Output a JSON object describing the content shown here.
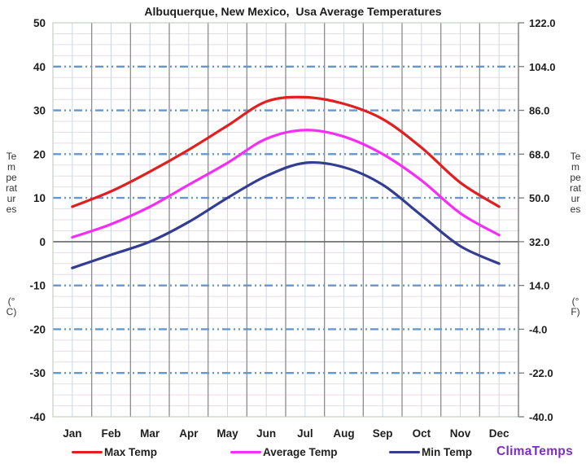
{
  "title": "Albuquerque, New Mexico,  Usa Average Temperatures",
  "watermark": "ClimaTemps",
  "axis_left": {
    "word": "Temperatures",
    "unit": "(°C)"
  },
  "axis_right": {
    "word": "Temperatures",
    "unit": "(°F)"
  },
  "colors": {
    "max_temp": "#e02020",
    "average_temp": "#f62df6",
    "min_temp": "#333d92",
    "dashed_grid": "#6596d2",
    "zero_line": "#666666",
    "minor_grid_h": "#e6dde6",
    "minor_grid_v": "#ccd6e6",
    "month_grid": "#8c8c8c",
    "frame": "#b7cab7",
    "right_axis": "#7a7a7a",
    "watermark": "#7d2ec2"
  },
  "chart_data": {
    "type": "line",
    "title": "Albuquerque, New Mexico, Usa Average Temperatures",
    "xlabel": "",
    "ylabel_left": "Temperatures (°C)",
    "ylabel_right": "Temperatures (°F)",
    "categories": [
      "Jan",
      "Feb",
      "Mar",
      "Apr",
      "May",
      "Jun",
      "Jul",
      "Aug",
      "Sep",
      "Oct",
      "Nov",
      "Dec"
    ],
    "series": [
      {
        "name": "Max Temp",
        "color": "#e02020",
        "values": [
          8,
          11.5,
          16,
          21,
          26.5,
          32,
          33,
          31.5,
          28,
          21.5,
          13.5,
          8
        ]
      },
      {
        "name": "Average Temp",
        "color": "#f62df6",
        "values": [
          1,
          4,
          8,
          13,
          18,
          23.5,
          25.5,
          24,
          20,
          14,
          6.5,
          1.5
        ]
      },
      {
        "name": "Min Temp",
        "color": "#333d92",
        "values": [
          -6,
          -3,
          0,
          4.5,
          10,
          15,
          18,
          17,
          13,
          6,
          -1,
          -5
        ]
      }
    ],
    "ylim": [
      -40,
      50
    ],
    "y_ticks_c": [
      50,
      40,
      30,
      20,
      10,
      0,
      -10,
      -20,
      -30,
      -40
    ],
    "y_ticks_f": [
      "122.0",
      "104.0",
      "86.0",
      "68.0",
      "50.0",
      "32.0",
      "14.0",
      "-4.0",
      "-22.0",
      "-40.0"
    ],
    "dashed_lines_c": [
      40,
      30,
      20,
      10,
      -10,
      -20,
      -30
    ],
    "minor_step_c": 2.5,
    "grid": true,
    "legend_position": "bottom"
  }
}
